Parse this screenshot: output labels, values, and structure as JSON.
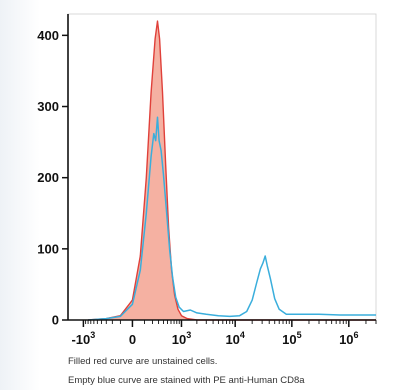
{
  "chart_data": {
    "type": "area",
    "title": "",
    "xlabel": "",
    "ylabel": "",
    "x_scale": "biexponential",
    "xlim": [
      -2000,
      3000000
    ],
    "ylim": [
      0,
      430
    ],
    "y_ticks": [
      0,
      100,
      200,
      300,
      400
    ],
    "x_ticks": [
      {
        "value": -1000,
        "base": "-10",
        "exp": "3"
      },
      {
        "value": 0,
        "base": "0",
        "exp": ""
      },
      {
        "value": 1000,
        "base": "10",
        "exp": "3"
      },
      {
        "value": 10000,
        "base": "10",
        "exp": "4"
      },
      {
        "value": 100000,
        "base": "10",
        "exp": "5"
      },
      {
        "value": 1000000,
        "base": "10",
        "exp": "6"
      }
    ],
    "series": [
      {
        "color": "#e0403a",
        "fill": "#f4a898",
        "style": "filled",
        "points": [
          [
            -800,
            0
          ],
          [
            -300,
            2
          ],
          [
            -100,
            6
          ],
          [
            0,
            28
          ],
          [
            60,
            90
          ],
          [
            120,
            200
          ],
          [
            180,
            320
          ],
          [
            240,
            395
          ],
          [
            280,
            420
          ],
          [
            320,
            395
          ],
          [
            380,
            320
          ],
          [
            450,
            220
          ],
          [
            530,
            130
          ],
          [
            620,
            70
          ],
          [
            720,
            35
          ],
          [
            850,
            15
          ],
          [
            1000,
            6
          ],
          [
            1300,
            2
          ],
          [
            2000,
            0
          ],
          [
            3000000,
            0
          ]
        ]
      },
      {
        "color": "#3aaedc",
        "fill": "none",
        "style": "line",
        "points": [
          [
            -800,
            0
          ],
          [
            -300,
            2
          ],
          [
            -100,
            5
          ],
          [
            0,
            22
          ],
          [
            60,
            70
          ],
          [
            120,
            150
          ],
          [
            180,
            230
          ],
          [
            220,
            262
          ],
          [
            250,
            252
          ],
          [
            280,
            285
          ],
          [
            310,
            252
          ],
          [
            350,
            238
          ],
          [
            400,
            205
          ],
          [
            480,
            150
          ],
          [
            560,
            98
          ],
          [
            650,
            60
          ],
          [
            760,
            32
          ],
          [
            900,
            18
          ],
          [
            1100,
            12
          ],
          [
            1500,
            14
          ],
          [
            2000,
            10
          ],
          [
            3000,
            8
          ],
          [
            5000,
            6
          ],
          [
            8000,
            5
          ],
          [
            12000,
            6
          ],
          [
            16000,
            12
          ],
          [
            20000,
            28
          ],
          [
            24000,
            52
          ],
          [
            28000,
            72
          ],
          [
            31000,
            80
          ],
          [
            34000,
            90
          ],
          [
            37000,
            76
          ],
          [
            42000,
            58
          ],
          [
            50000,
            30
          ],
          [
            60000,
            15
          ],
          [
            80000,
            8
          ],
          [
            150000,
            8
          ],
          [
            300000,
            8
          ],
          [
            700000,
            7
          ],
          [
            3000000,
            7
          ]
        ]
      }
    ]
  },
  "captions": {
    "line1": "Filled red curve are unstained cells.",
    "line2": "Empty blue curve are stained with PE anti-Human CD8a"
  }
}
